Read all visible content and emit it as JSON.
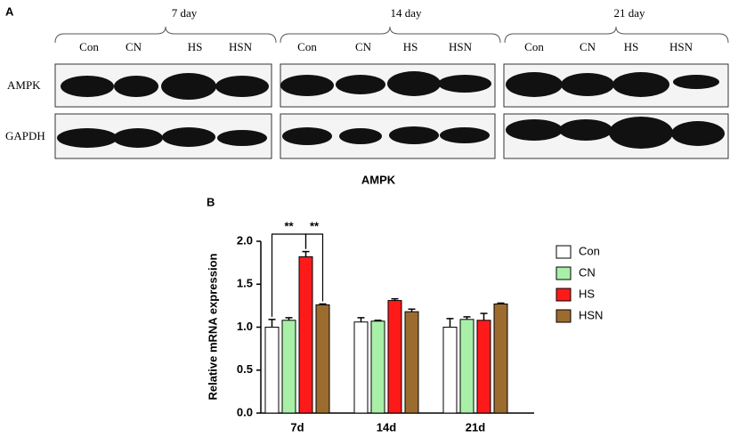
{
  "blot": {
    "label": "A",
    "rows": [
      "AMPK",
      "GAPDH"
    ],
    "groups": [
      {
        "name": "7 day",
        "lanes": [
          "Con",
          "CN",
          "HS",
          "HSN"
        ]
      },
      {
        "name": "14 day",
        "lanes": [
          "Con",
          "CN",
          "HS",
          "HSN"
        ]
      },
      {
        "name": "21 day",
        "lanes": [
          "Con",
          "CN",
          "HS",
          "HSN"
        ]
      }
    ]
  },
  "chart_data": {
    "type": "bar",
    "label": "B",
    "title": "AMPK",
    "ylabel": "Relative mRNA expression",
    "categories": [
      "7d",
      "14d",
      "21d"
    ],
    "series": [
      {
        "name": "Con",
        "color": "#ffffff",
        "values": [
          1.0,
          1.06,
          1.0
        ],
        "errors": [
          0.09,
          0.05,
          0.1
        ]
      },
      {
        "name": "CN",
        "color": "#a8f0a8",
        "values": [
          1.08,
          1.07,
          1.09
        ],
        "errors": [
          0.03,
          0.01,
          0.03
        ]
      },
      {
        "name": "HS",
        "color": "#ff1a1a",
        "values": [
          1.82,
          1.31,
          1.08
        ],
        "errors": [
          0.06,
          0.02,
          0.08
        ]
      },
      {
        "name": "HSN",
        "color": "#9c6b2e",
        "values": [
          1.26,
          1.18,
          1.27
        ],
        "errors": [
          0.01,
          0.03,
          0.01
        ]
      }
    ],
    "ylim": [
      0,
      2
    ],
    "yticks": [
      {
        "value": 0,
        "label": "0.0"
      },
      0.5,
      {
        "value": 1,
        "label": "1.0"
      },
      1.5,
      {
        "value": 2,
        "label": "2.0"
      }
    ],
    "annotations": [
      "**",
      "**"
    ]
  }
}
